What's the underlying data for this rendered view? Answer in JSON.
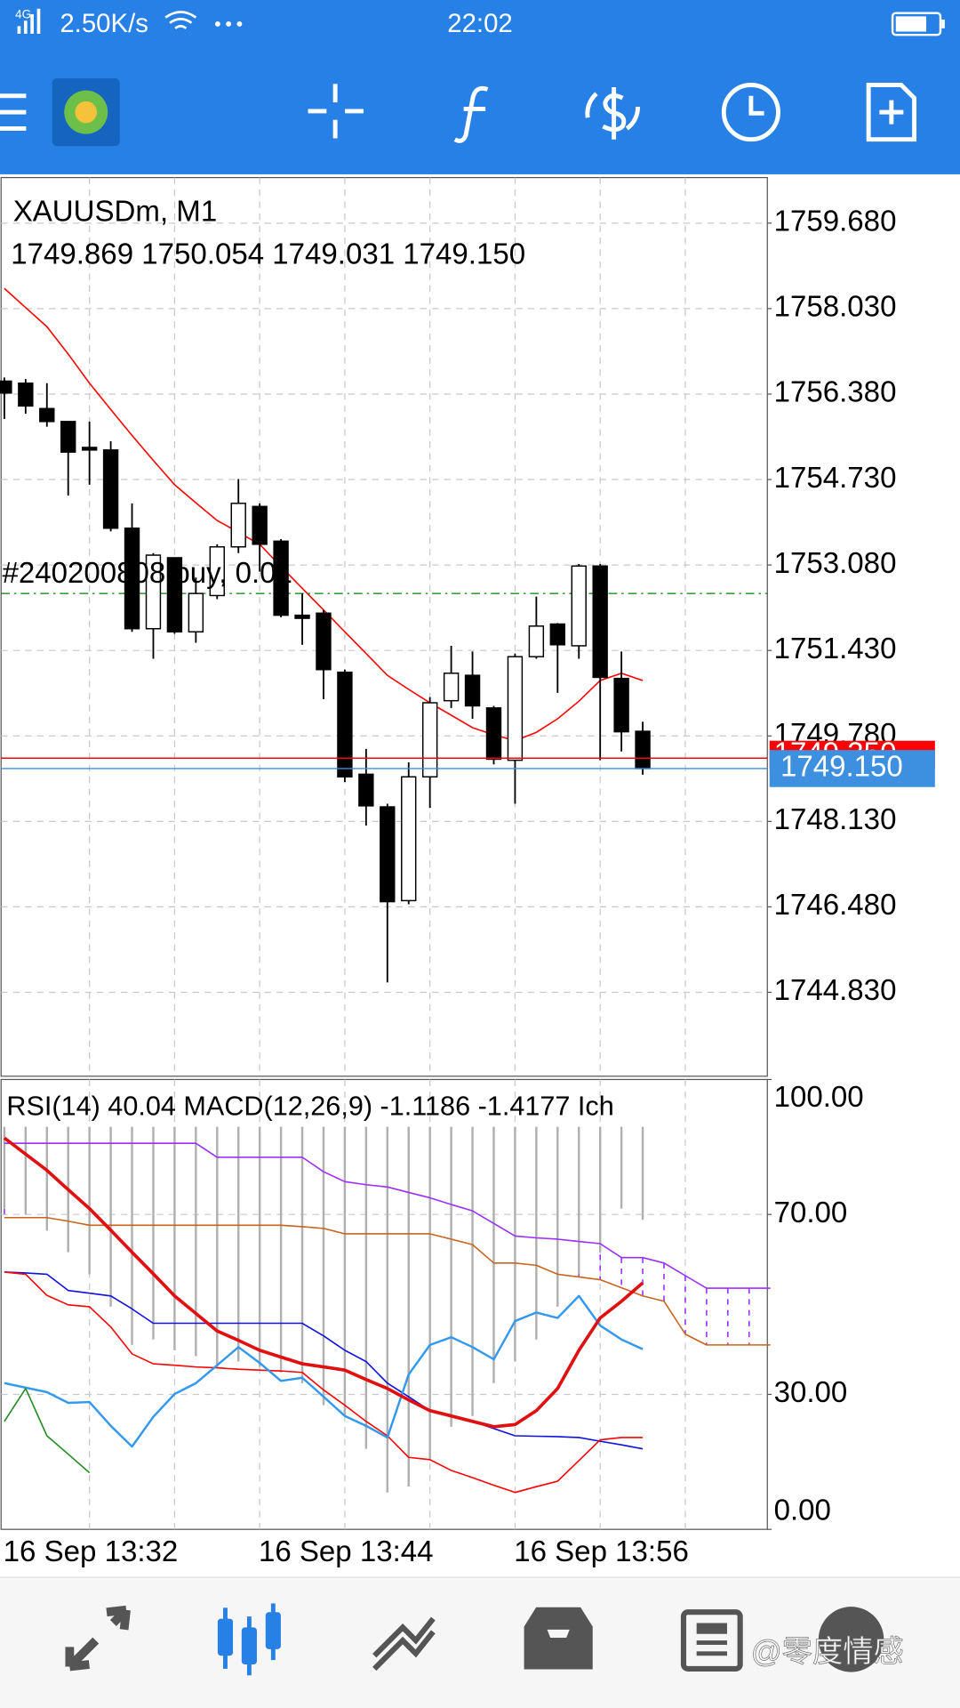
{
  "status_bar": {
    "network": "4G",
    "speed": "2.50K/s",
    "time": "22:02"
  },
  "watermark": "@零度情感",
  "chart_data": [
    {
      "type": "candlestick",
      "title": "XAUUSDm, M1",
      "subtitle": "1749.869 1750.054 1749.031 1749.150",
      "categories": [
        "16 Sep 13:32",
        null,
        null,
        null,
        null,
        null,
        null,
        null,
        null,
        null,
        null,
        null,
        "16 Sep 13:44",
        null,
        null,
        null,
        null,
        null,
        null,
        null,
        null,
        null,
        null,
        null,
        "16 Sep 13:56",
        null,
        null,
        null,
        null,
        null,
        null,
        null,
        null,
        null,
        null,
        null,
        null
      ],
      "open": [
        1756.63,
        1756.59,
        1756.1,
        1755.85,
        1755.35,
        1755.3,
        1753.79,
        1751.85,
        1753.22,
        1751.79,
        1752.49,
        1753.43,
        1754.21,
        1753.54,
        1752.11,
        1752.15,
        1751.01,
        1749.04,
        1748.41,
        1746.6,
        1748.99,
        1750.46,
        1750.95,
        1750.32,
        1749.31,
        1751.31,
        1751.94,
        1751.52,
        1753.06,
        1750.89,
        1749.869,
        null,
        null,
        null,
        null,
        null,
        null
      ],
      "high": [
        1756.7,
        1756.67,
        1756.59,
        1755.85,
        1755.85,
        1755.47,
        1754.27,
        1753.31,
        1753.22,
        1752.84,
        1753.48,
        1754.74,
        1754.27,
        1753.58,
        1752.53,
        1752.21,
        1751.06,
        1749.53,
        1748.47,
        1749.27,
        1750.53,
        1751.52,
        1751.41,
        1750.36,
        1751.37,
        1752.47,
        1751.96,
        1753.1,
        1753.1,
        1751.41,
        1750.054,
        null,
        null,
        null,
        null,
        null,
        null
      ],
      "low": [
        1755.9,
        1756.0,
        1755.75,
        1754.42,
        1754.63,
        1753.73,
        1751.79,
        1751.27,
        1751.75,
        1751.58,
        1752.42,
        1753.31,
        1752.95,
        1752.07,
        1751.54,
        1750.49,
        1748.89,
        1748.05,
        1745.02,
        1746.53,
        1748.39,
        1750.32,
        1750.11,
        1749.23,
        1748.47,
        1751.27,
        1750.61,
        1751.27,
        1749.31,
        1749.48,
        1749.031,
        null,
        null,
        null,
        null,
        null,
        null
      ],
      "close": [
        1756.4,
        1756.15,
        1755.85,
        1755.26,
        1755.3,
        1753.79,
        1751.85,
        1753.27,
        1751.79,
        1752.53,
        1753.43,
        1754.27,
        1753.48,
        1752.11,
        1752.05,
        1751.06,
        1748.99,
        1748.43,
        1746.58,
        1748.99,
        1750.42,
        1750.99,
        1750.36,
        1749.33,
        1751.31,
        1751.9,
        1751.54,
        1753.06,
        1750.91,
        1749.86,
        1749.15,
        null,
        null,
        null,
        null,
        null,
        null
      ],
      "series": [
        {
          "color": "#ff0000",
          "values": [
            1758.42,
            1758.05,
            1757.68,
            1757.15,
            1756.59,
            1756.08,
            1755.58,
            1755.1,
            1754.63,
            1754.28,
            1753.94,
            1753.71,
            1753.48,
            1753.05,
            1752.63,
            1752.21,
            1751.79,
            1751.37,
            1750.95,
            1750.68,
            1750.42,
            1750.18,
            1749.94,
            1749.8,
            1749.69,
            1749.85,
            1750.11,
            1750.45,
            1750.85,
            1750.99,
            1750.85,
            null,
            null,
            null,
            null,
            null,
            null
          ]
        }
      ],
      "order_line": {
        "label": "#240200808 buy, 0.01",
        "value": 1752.53,
        "color": "#008000"
      },
      "ask": {
        "value": 1749.35,
        "label": "1749.350",
        "color": "#ff0000"
      },
      "bid": {
        "value": 1749.15,
        "label": "1749.150",
        "color": "#3d8fe0"
      },
      "ylim": [
        1743.21,
        1760.56
      ],
      "yticks": [
        {
          "value": 1759.68,
          "label": "1759.680"
        },
        {
          "value": 1758.03,
          "label": "1758.030"
        },
        {
          "value": 1756.38,
          "label": "1756.380"
        },
        {
          "value": 1754.73,
          "label": "1754.730"
        },
        {
          "value": 1753.08,
          "label": "1753.080"
        },
        {
          "value": 1751.43,
          "label": "1751.430"
        },
        {
          "value": 1749.78,
          "label": "1749.780"
        },
        {
          "value": 1748.13,
          "label": "1748.130"
        },
        {
          "value": 1746.48,
          "label": "1746.480"
        },
        {
          "value": 1744.83,
          "label": "1744.830"
        }
      ],
      "grid": true
    },
    {
      "type": "line",
      "title": "RSI(14) 40.04 MACD(12,26,9) -1.1186 -1.4177 Ich",
      "ylim": [
        0,
        100
      ],
      "yticks": [
        {
          "value": 100,
          "label": "100.00"
        },
        {
          "value": 70,
          "label": "70.00"
        },
        {
          "value": 30,
          "label": "30.00"
        },
        {
          "value": 0,
          "label": "0.00"
        }
      ],
      "grid": true,
      "cloud": true,
      "cloud_color": "#9b30ff",
      "histogram": {
        "color": "#b0b0b0",
        "baseline": 89.5,
        "values": [
          71.3,
          70.0,
          66.4,
          61.6,
          56.7,
          49.5,
          41.0,
          42.2,
          39.8,
          38.5,
          36.1,
          37.3,
          36.1,
          34.9,
          32.5,
          27.6,
          25.2,
          17.9,
          8.2,
          9.5,
          15.5,
          22.8,
          25.2,
          32.5,
          37.3,
          42.2,
          49.5,
          56.7,
          61.6,
          71.3,
          68.8,
          null,
          null,
          null,
          null,
          null,
          null
        ]
      },
      "series": [
        {
          "color": "#9b30ff",
          "line_width": 1.3,
          "values": [
            85.8,
            85.8,
            85.8,
            85.8,
            85.8,
            85.8,
            85.8,
            85.8,
            85.8,
            85.8,
            82.7,
            82.7,
            82.7,
            82.7,
            82.7,
            79.5,
            77.3,
            76.6,
            76.1,
            74.9,
            73.7,
            72.2,
            70.8,
            68.0,
            65.2,
            64.8,
            64.5,
            64.0,
            63.5,
            60.4,
            60.4,
            59.2,
            56.4,
            53.6,
            53.6,
            53.6,
            53.6
          ]
        },
        {
          "color": "#c8641e",
          "line_width": 1.3,
          "values": [
            69.3,
            69.3,
            69.3,
            68.5,
            67.6,
            67.6,
            67.6,
            67.6,
            67.6,
            67.6,
            67.6,
            67.6,
            67.6,
            67.6,
            67.3,
            66.9,
            65.7,
            65.7,
            65.7,
            65.7,
            65.7,
            64.5,
            63.3,
            59.2,
            59.2,
            58.7,
            56.7,
            56.1,
            55.5,
            53.7,
            51.9,
            50.7,
            43.4,
            41.0,
            41.0,
            41.0,
            41.0
          ]
        },
        {
          "color": "#1010e0",
          "line_width": 1.3,
          "values": [
            57.2,
            57.0,
            56.7,
            53.1,
            52.5,
            51.9,
            49.0,
            45.8,
            45.8,
            45.8,
            45.8,
            45.8,
            45.8,
            45.8,
            45.8,
            43.0,
            39.8,
            37.3,
            32.5,
            29.5,
            26.4,
            25.2,
            24.0,
            22.4,
            20.8,
            20.7,
            20.6,
            20.4,
            19.6,
            18.8,
            17.9,
            null,
            null,
            null,
            null,
            null,
            null
          ]
        },
        {
          "color": "#ff0000",
          "line_width": 1.3,
          "values": [
            57.2,
            56.7,
            52.0,
            49.9,
            49.5,
            45.0,
            39.0,
            36.8,
            36.5,
            36.1,
            35.9,
            35.6,
            35.4,
            35.2,
            34.9,
            31.0,
            27.6,
            24.0,
            20.8,
            16.0,
            15.5,
            13.1,
            11.5,
            9.8,
            8.2,
            9.5,
            10.7,
            15.3,
            19.9,
            20.4,
            20.4,
            null,
            null,
            null,
            null,
            null,
            null
          ]
        },
        {
          "color": "#3399ee",
          "line_width": 2,
          "values": [
            32.5,
            31.5,
            30.5,
            28.1,
            28.3,
            23.0,
            18.4,
            25.0,
            30.1,
            32.5,
            36.5,
            40.5,
            37.0,
            33.0,
            33.7,
            29.5,
            25.2,
            23.0,
            20.4,
            34.4,
            41.0,
            42.7,
            40.5,
            37.8,
            46.3,
            48.2,
            47.0,
            51.9,
            45.3,
            42.2,
            40.04,
            null,
            null,
            null,
            null,
            null,
            null
          ]
        },
        {
          "color": "#e01010",
          "line_width": 3,
          "values": [
            87.0,
            83.4,
            79.8,
            75.5,
            71.3,
            66.5,
            61.6,
            56.8,
            51.9,
            48.0,
            44.1,
            42.0,
            39.8,
            38.3,
            36.8,
            36.1,
            35.4,
            33.3,
            31.3,
            28.8,
            26.4,
            25.2,
            24.0,
            22.8,
            23.3,
            26.4,
            31.3,
            39.8,
            47.0,
            50.7,
            54.8,
            null,
            null,
            null,
            null,
            null,
            null
          ]
        },
        {
          "color": "#228b22",
          "line_width": 1.3,
          "values": [
            24.0,
            31.3,
            20.8,
            16.7,
            12.6,
            null,
            null,
            null,
            null,
            null,
            null,
            null,
            null,
            null,
            null,
            null,
            null,
            null,
            null,
            null,
            null,
            null,
            null,
            null,
            null,
            null,
            null,
            null,
            null,
            null,
            null,
            null,
            null,
            null,
            null,
            null,
            null
          ]
        }
      ]
    }
  ]
}
